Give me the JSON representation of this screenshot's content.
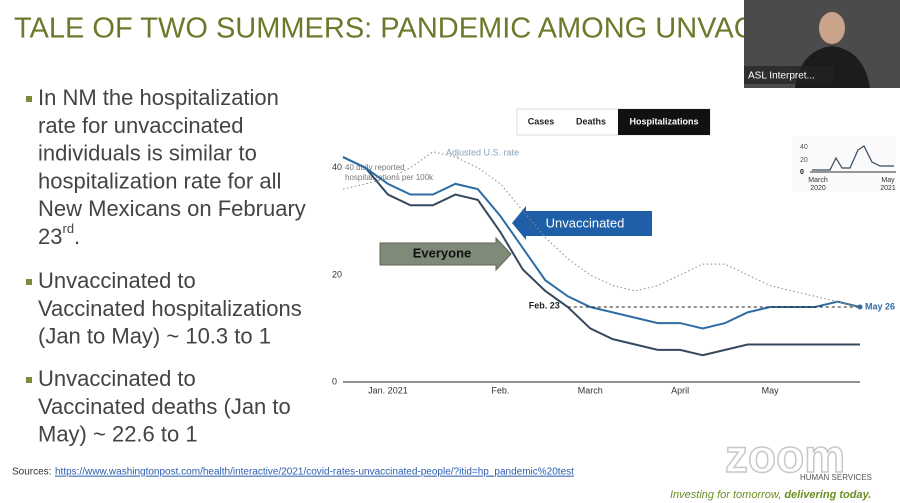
{
  "slide": {
    "title": "TALE OF TWO SUMMERS: PANDEMIC AMONG UNVACC",
    "bullets": [
      {
        "lines": [
          "In NM the hospitalization",
          "rate for unvaccinated",
          "individuals is similar to",
          "hospitalization rate for all",
          "New Mexicans on February",
          "23"
        ],
        "sup": "rd",
        "end": "."
      },
      {
        "lines": [
          "Unvaccinated to",
          "Vaccinated hospitalizations",
          "(Jan to May) ~ 10.3 to 1"
        ]
      },
      {
        "lines": [
          "Unvaccinated to",
          "Vaccinated deaths (Jan to",
          "May) ~ 22.6 to 1"
        ]
      }
    ],
    "sources_label": "Sources:",
    "sources_url": "https://www.washingtonpost.com/health/interactive/2021/covid-rates-unvaccinated-people/?itid=hp_pandemic%20test"
  },
  "tabs": [
    "Cases",
    "Deaths",
    "Hospitalizations"
  ],
  "chart_data": {
    "type": "line",
    "axis_note": [
      "40 daily reported",
      "hospitalizations per 100k"
    ],
    "categories": [
      null,
      null,
      "Jan. 2021",
      null,
      null,
      null,
      null,
      "Feb.",
      null,
      null,
      null,
      "March",
      null,
      null,
      null,
      "April",
      null,
      null,
      null,
      "May",
      null,
      null,
      null,
      null
    ],
    "series": [
      {
        "name": "Everyone",
        "color": "#34495e",
        "values": [
          42,
          40,
          35,
          33,
          33,
          35,
          34,
          28,
          21,
          17,
          14,
          10,
          8,
          7,
          6,
          6,
          5,
          6,
          7,
          7,
          7,
          7,
          7,
          7
        ]
      },
      {
        "name": "Unvaccinated",
        "color": "#2e6da4",
        "values": [
          42,
          40,
          37,
          35,
          35,
          37,
          36,
          31,
          25,
          19,
          16,
          14,
          13,
          12,
          11,
          11,
          10,
          11,
          13,
          14,
          14,
          14,
          15,
          14
        ]
      },
      {
        "name": "Adjusted U.S. rate",
        "color": "#8a8a8a",
        "values": [
          36,
          37,
          38,
          40,
          43,
          42,
          40,
          37,
          32,
          27,
          23,
          20,
          18,
          17,
          18,
          20,
          22,
          22,
          20,
          18,
          17,
          16,
          15,
          14
        ]
      }
    ],
    "ylim": [
      0,
      45
    ],
    "yticks": [
      0,
      20,
      40
    ],
    "start_label": "Feb. 23",
    "end_label": "May 26"
  },
  "inset": {
    "yticks": [
      "40",
      "20",
      "0"
    ],
    "x_labels": [
      [
        "March",
        "2020"
      ],
      [
        "May",
        "2021"
      ]
    ]
  },
  "video": {
    "label": "ASL Interpret..."
  },
  "footer": {
    "logo": "zoom",
    "org": "HUMAN SERVICES",
    "tagline_a": "Investing for tomorrow, ",
    "tagline_b": "delivering today."
  }
}
